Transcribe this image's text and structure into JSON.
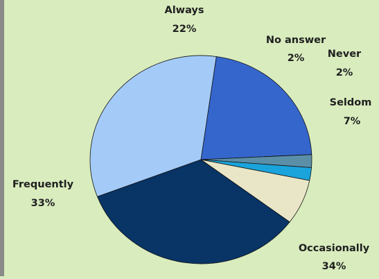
{
  "chart_data": {
    "type": "pie",
    "title": "",
    "slices": [
      {
        "label": "Always",
        "value": 22,
        "percent_label": "22%",
        "color": "#3566cc"
      },
      {
        "label": "No answer",
        "value": 2,
        "percent_label": "2%",
        "color": "#5b8fa8"
      },
      {
        "label": "Never",
        "value": 2,
        "percent_label": "2%",
        "color": "#1aa4db"
      },
      {
        "label": "Seldom",
        "value": 7,
        "percent_label": "7%",
        "color": "#e8e6c7"
      },
      {
        "label": "Occasionally",
        "value": 34,
        "percent_label": "34%",
        "color": "#083466"
      },
      {
        "label": "Frequently",
        "value": 33,
        "percent_label": "33%",
        "color": "#a4cbf8"
      }
    ],
    "legend": "none"
  },
  "colors": {
    "background": "#d9ecbe",
    "border": "#8a8a8a",
    "slice_outline": "#111111",
    "label_text": "#1f1f1f"
  }
}
